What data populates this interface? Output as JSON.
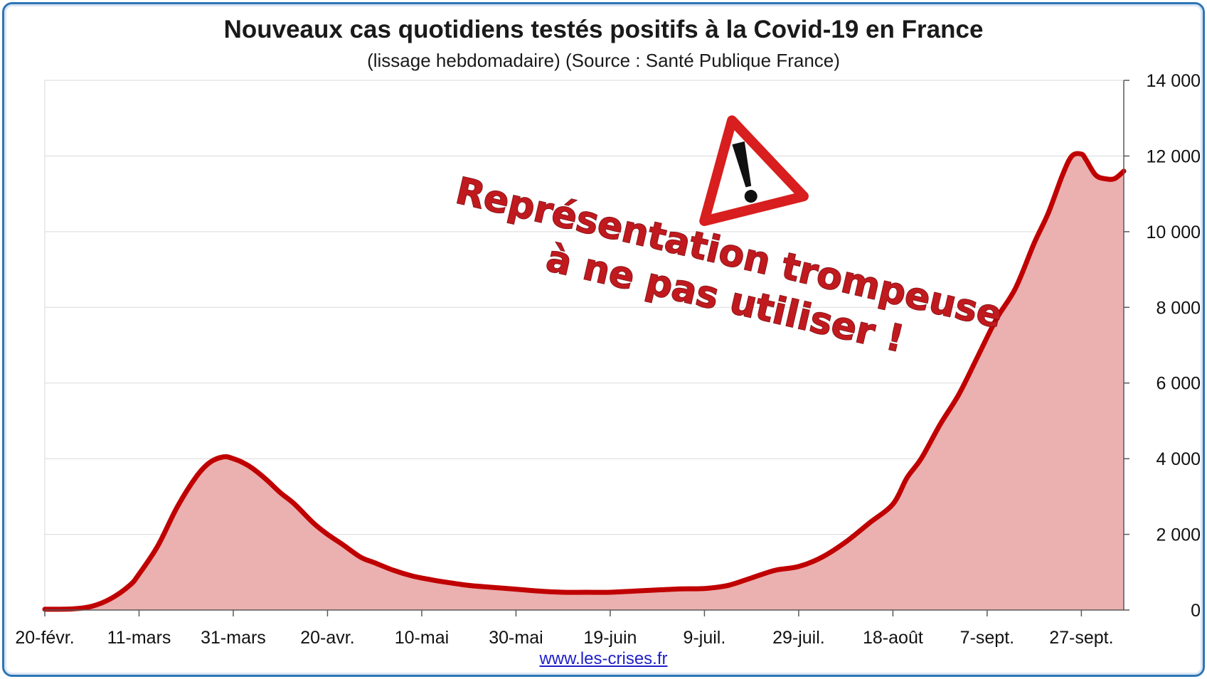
{
  "chart_data": {
    "type": "area",
    "title": "Nouveaux cas quotidiens testés positifs à la Covid-19 en France",
    "subtitle": "(lissage hebdomadaire) (Source : Santé Publique France)",
    "xlabel": "",
    "ylabel": "",
    "x_tick_labels": [
      "20-févr.",
      "11-mars",
      "31-mars",
      "20-avr.",
      "10-mai",
      "30-mai",
      "19-juin",
      "9-juil.",
      "29-juil.",
      "18-août",
      "7-sept.",
      "27-sept."
    ],
    "y_tick_labels": [
      "0",
      "2 000",
      "4 000",
      "6 000",
      "8 000",
      "10 000",
      "12 000",
      "14 000"
    ],
    "ylim": [
      0,
      14000
    ],
    "y_axis_side": "right",
    "grid": true,
    "line_color": "#c00000",
    "fill_color": "#ebb0b0",
    "x_day_range": [
      0,
      229
    ],
    "x_tick_days": [
      0,
      20,
      40,
      60,
      80,
      100,
      120,
      140,
      160,
      180,
      200,
      220
    ],
    "series": [
      {
        "x_days": [
          0,
          6,
          10,
          14,
          18,
          20,
          24,
          28,
          32,
          35,
          38,
          40,
          42,
          44,
          47,
          50,
          53,
          57,
          60,
          63,
          67,
          70,
          74,
          78,
          82,
          86,
          90,
          95,
          100,
          105,
          110,
          115,
          120,
          125,
          130,
          135,
          140,
          145,
          150,
          155,
          160,
          165,
          170,
          175,
          180,
          183,
          186,
          190,
          194,
          198,
          202,
          206,
          210,
          213,
          216,
          218,
          220,
          221,
          223,
          225,
          227,
          229
        ],
        "values": [
          20,
          30,
          100,
          300,
          650,
          950,
          1700,
          2700,
          3500,
          3900,
          4050,
          4000,
          3900,
          3750,
          3450,
          3100,
          2800,
          2300,
          2000,
          1750,
          1400,
          1250,
          1050,
          900,
          800,
          720,
          650,
          600,
          550,
          500,
          470,
          470,
          470,
          500,
          530,
          560,
          570,
          650,
          850,
          1050,
          1150,
          1400,
          1800,
          2300,
          2800,
          3500,
          4000,
          4900,
          5700,
          6700,
          7700,
          8500,
          9700,
          10500,
          11500,
          12000,
          12050,
          11900,
          11500,
          11400,
          11400,
          11600
        ]
      }
    ],
    "annotations": [
      "Représentation trompeuse",
      "à ne pas utiliser !"
    ]
  },
  "credit": "www.les-crises.fr",
  "warning_icon": "warning-triangle-icon"
}
